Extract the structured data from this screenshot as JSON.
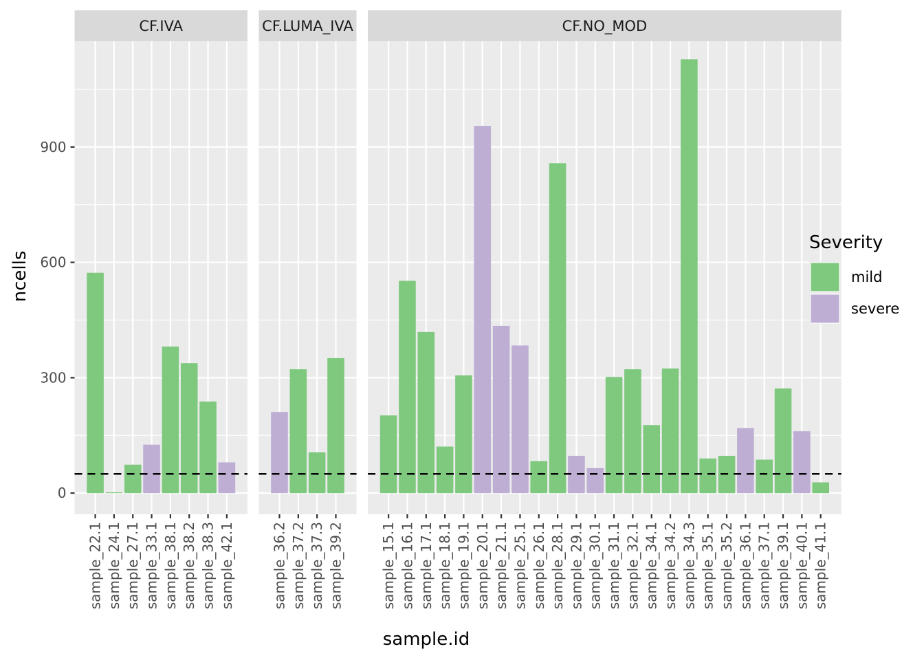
{
  "chart_data": {
    "type": "bar",
    "facet_variable": "treatment",
    "xlabel": "sample.id",
    "ylabel": "ncells",
    "ylim": [
      -55,
      1175
    ],
    "yticks": [
      0,
      300,
      600,
      900
    ],
    "reference_line": 50,
    "legend": {
      "title": "Severity",
      "position": "right",
      "entries": [
        {
          "label": "mild",
          "color": "#7FC97F"
        },
        {
          "label": "severe",
          "color": "#BEAED4"
        }
      ]
    },
    "panels": [
      {
        "label": "CF.IVA",
        "categories": [
          "sample_22.1",
          "sample_24.1",
          "sample_27.1",
          "sample_33.1",
          "sample_38.1",
          "sample_38.2",
          "sample_38.3",
          "sample_42.1"
        ],
        "values": [
          573,
          2,
          74,
          126,
          381,
          338,
          238,
          80
        ],
        "severity": [
          "mild",
          "mild",
          "mild",
          "severe",
          "mild",
          "mild",
          "mild",
          "severe"
        ]
      },
      {
        "label": "CF.LUMA_IVA",
        "categories": [
          "sample_36.2",
          "sample_37.2",
          "sample_37.3",
          "sample_39.2"
        ],
        "values": [
          211,
          322,
          106,
          351
        ],
        "severity": [
          "severe",
          "mild",
          "mild",
          "mild"
        ]
      },
      {
        "label": "CF.NO_MOD",
        "categories": [
          "sample_15.1",
          "sample_16.1",
          "sample_17.1",
          "sample_18.1",
          "sample_19.1",
          "sample_20.1",
          "sample_21.1",
          "sample_25.1",
          "sample_26.1",
          "sample_28.1",
          "sample_29.1",
          "sample_30.1",
          "sample_31.1",
          "sample_32.1",
          "sample_34.1",
          "sample_34.2",
          "sample_34.3",
          "sample_35.1",
          "sample_35.2",
          "sample_36.1",
          "sample_37.1",
          "sample_39.1",
          "sample_40.1",
          "sample_41.1"
        ],
        "values": [
          202,
          552,
          419,
          121,
          306,
          955,
          435,
          384,
          83,
          858,
          97,
          65,
          302,
          322,
          177,
          324,
          1128,
          90,
          97,
          169,
          87,
          272,
          161,
          28
        ],
        "severity": [
          "mild",
          "mild",
          "mild",
          "mild",
          "mild",
          "severe",
          "severe",
          "severe",
          "mild",
          "mild",
          "severe",
          "severe",
          "mild",
          "mild",
          "mild",
          "mild",
          "mild",
          "mild",
          "mild",
          "severe",
          "mild",
          "mild",
          "severe",
          "mild"
        ]
      }
    ]
  }
}
